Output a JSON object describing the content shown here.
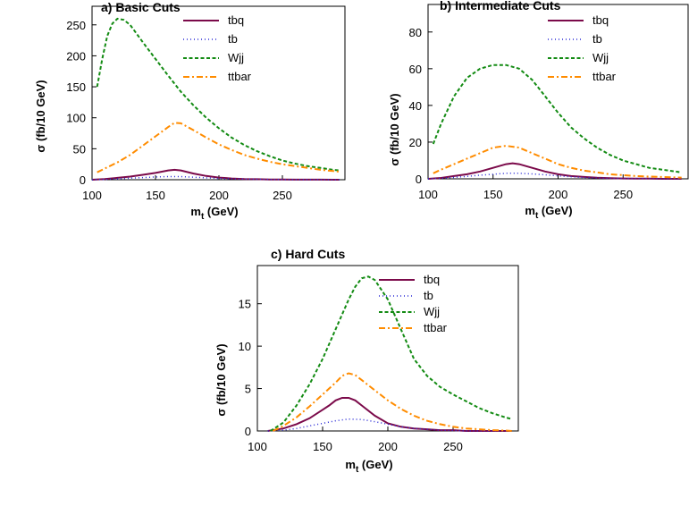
{
  "chart_data": [
    {
      "type": "line",
      "title": "a) Basic Cuts",
      "xlabel": "m_t (GeV)",
      "xlabel_main": "m",
      "xlabel_sub": "t",
      "xlabel_unit": " (GeV)",
      "ylabel": "σ (fb/10 GeV)",
      "xlim": [
        100,
        300
      ],
      "ylim": [
        0,
        280
      ],
      "xticks": [
        100,
        150,
        200,
        250
      ],
      "yticks": [
        0,
        50,
        100,
        150,
        200,
        250
      ],
      "legend_position": "top-right",
      "series": [
        {
          "name": "tbq",
          "x": [
            100,
            110,
            120,
            130,
            140,
            150,
            160,
            165,
            170,
            180,
            190,
            200,
            210,
            220,
            230,
            240,
            250,
            260,
            270,
            280,
            290,
            295
          ],
          "y": [
            0,
            1,
            3,
            5,
            8,
            11,
            15,
            16,
            15,
            10,
            6,
            3.5,
            2,
            1.2,
            0.8,
            0.5,
            0.3,
            0.2,
            0.1,
            0.1,
            0,
            0
          ]
        },
        {
          "name": "tb",
          "x": [
            100,
            110,
            120,
            130,
            140,
            150,
            160,
            170,
            180,
            190,
            200,
            210,
            220,
            230,
            240,
            250,
            260,
            270,
            280,
            290,
            295
          ],
          "y": [
            0,
            0.5,
            1.5,
            2.5,
            3.5,
            4.5,
            5,
            5,
            4,
            3,
            2,
            1.5,
            1,
            0.7,
            0.5,
            0.3,
            0.2,
            0.1,
            0.1,
            0,
            0
          ]
        },
        {
          "name": "Wjj",
          "x": [
            104,
            108,
            112,
            116,
            120,
            125,
            130,
            135,
            140,
            150,
            160,
            170,
            180,
            190,
            200,
            210,
            220,
            230,
            240,
            250,
            260,
            270,
            280,
            290,
            295
          ],
          "y": [
            150,
            195,
            232,
            252,
            260,
            258,
            250,
            236,
            222,
            195,
            168,
            142,
            120,
            100,
            83,
            68,
            56,
            46,
            38,
            31,
            26,
            22,
            19,
            16,
            15
          ]
        },
        {
          "name": "ttbar",
          "x": [
            104,
            110,
            120,
            130,
            140,
            150,
            160,
            165,
            170,
            180,
            190,
            200,
            210,
            220,
            230,
            240,
            250,
            260,
            270,
            280,
            290,
            295
          ],
          "y": [
            12,
            18,
            28,
            40,
            55,
            70,
            85,
            92,
            91,
            80,
            68,
            57,
            48,
            40,
            34,
            29,
            25,
            22,
            19,
            16,
            14,
            13
          ]
        }
      ]
    },
    {
      "type": "line",
      "title": "b) Intermediate Cuts",
      "xlabel": "m_t (GeV)",
      "xlabel_main": "m",
      "xlabel_sub": "t",
      "xlabel_unit": " (GeV)",
      "ylabel": "σ (fb/10 GeV)",
      "xlim": [
        100,
        300
      ],
      "ylim": [
        0,
        95
      ],
      "xticks": [
        100,
        150,
        200,
        250
      ],
      "yticks": [
        0,
        20,
        40,
        60,
        80
      ],
      "legend_position": "top-right",
      "series": [
        {
          "name": "tbq",
          "x": [
            100,
            110,
            120,
            130,
            140,
            150,
            160,
            165,
            170,
            180,
            190,
            200,
            210,
            220,
            230,
            240,
            250,
            260,
            270,
            280,
            290,
            295
          ],
          "y": [
            0,
            0.5,
            1.5,
            2.5,
            4,
            6,
            8,
            8.5,
            8,
            6,
            4,
            2.5,
            1.5,
            1,
            0.6,
            0.4,
            0.2,
            0.1,
            0.1,
            0,
            0,
            0
          ]
        },
        {
          "name": "tb",
          "x": [
            100,
            110,
            120,
            130,
            140,
            150,
            160,
            170,
            180,
            190,
            200,
            210,
            220,
            230,
            240,
            250,
            260,
            270,
            280,
            290,
            295
          ],
          "y": [
            0,
            0.3,
            0.8,
            1.3,
            2,
            2.5,
            3,
            3,
            2.7,
            2.2,
            1.6,
            1.1,
            0.7,
            0.5,
            0.3,
            0.2,
            0.1,
            0.1,
            0,
            0,
            0
          ]
        },
        {
          "name": "Wjj",
          "x": [
            104,
            110,
            120,
            130,
            140,
            150,
            160,
            170,
            180,
            190,
            200,
            210,
            220,
            230,
            240,
            250,
            260,
            270,
            280,
            290,
            295
          ],
          "y": [
            19,
            30,
            45,
            55,
            60,
            62,
            62,
            60,
            54,
            45,
            36,
            28,
            22,
            17,
            13,
            10,
            8,
            6,
            5,
            4,
            3.5
          ]
        },
        {
          "name": "ttbar",
          "x": [
            104,
            110,
            120,
            130,
            140,
            150,
            160,
            170,
            180,
            190,
            200,
            210,
            220,
            230,
            240,
            250,
            260,
            270,
            280,
            290,
            295
          ],
          "y": [
            3,
            5,
            8,
            11,
            14,
            17,
            18,
            17,
            14,
            11,
            8,
            6,
            4.5,
            3.5,
            2.5,
            2,
            1.5,
            1.2,
            1,
            0.8,
            0.7
          ]
        }
      ]
    },
    {
      "type": "line",
      "title": "c) Hard Cuts",
      "xlabel": "m_t (GeV)",
      "xlabel_main": "m",
      "xlabel_sub": "t",
      "xlabel_unit": " (GeV)",
      "ylabel": "σ (fb/10 GeV)",
      "xlim": [
        100,
        300
      ],
      "ylim": [
        0,
        19.5
      ],
      "xticks": [
        100,
        150,
        200,
        250
      ],
      "yticks": [
        0,
        5,
        10,
        15
      ],
      "legend_position": "top-right",
      "series": [
        {
          "name": "tbq",
          "x": [
            108,
            120,
            130,
            140,
            150,
            155,
            160,
            165,
            170,
            175,
            180,
            190,
            200,
            210,
            220,
            230,
            240,
            250,
            260,
            270,
            280,
            290,
            295
          ],
          "y": [
            0,
            0.3,
            0.8,
            1.5,
            2.5,
            3,
            3.6,
            3.9,
            3.9,
            3.6,
            3,
            1.8,
            0.9,
            0.5,
            0.3,
            0.2,
            0.1,
            0.1,
            0,
            0,
            0,
            0,
            0
          ]
        },
        {
          "name": "tb",
          "x": [
            108,
            120,
            130,
            140,
            150,
            160,
            170,
            180,
            190,
            200,
            210,
            220,
            230,
            240,
            250,
            260,
            270,
            280,
            290,
            295
          ],
          "y": [
            0,
            0.1,
            0.3,
            0.6,
            0.9,
            1.2,
            1.4,
            1.35,
            1.1,
            0.8,
            0.5,
            0.3,
            0.2,
            0.1,
            0.05,
            0,
            0,
            0,
            0,
            0
          ]
        },
        {
          "name": "Wjj",
          "x": [
            110,
            115,
            120,
            130,
            140,
            150,
            160,
            170,
            175,
            180,
            185,
            190,
            200,
            210,
            220,
            230,
            240,
            250,
            260,
            270,
            280,
            290,
            295
          ],
          "y": [
            0,
            0.5,
            1,
            3,
            5.5,
            8.5,
            12,
            15.5,
            17,
            18,
            18.2,
            17.8,
            15.5,
            12,
            8.5,
            6.5,
            5.2,
            4.3,
            3.5,
            2.7,
            2.1,
            1.6,
            1.4
          ]
        },
        {
          "name": "ttbar",
          "x": [
            112,
            120,
            130,
            140,
            150,
            160,
            165,
            170,
            175,
            180,
            190,
            200,
            210,
            220,
            230,
            240,
            250,
            260,
            270,
            280,
            290,
            295
          ],
          "y": [
            0,
            0.6,
            1.6,
            2.9,
            4.3,
            5.7,
            6.5,
            6.8,
            6.6,
            6,
            4.8,
            3.6,
            2.6,
            1.8,
            1.2,
            0.8,
            0.5,
            0.3,
            0.2,
            0.1,
            0.05,
            0
          ]
        }
      ]
    }
  ],
  "series_styles": {
    "tbq": {
      "color": "#7b0a4a",
      "dash": "none"
    },
    "tb": {
      "color": "#2b2bd6",
      "dash": "1 3"
    },
    "Wjj": {
      "color": "#138b13",
      "dash": "4 2.5"
    },
    "ttbar": {
      "color": "#ff8c00",
      "dash": "7 3 2 3"
    }
  }
}
